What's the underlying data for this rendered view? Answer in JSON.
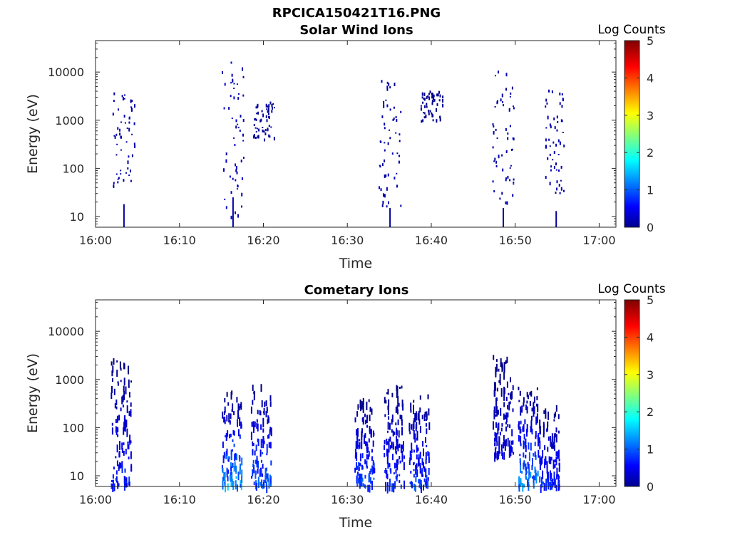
{
  "figure_title": "RPCICA150421T16.PNG",
  "chart_data": [
    {
      "type": "heatmap",
      "title": "Solar Wind Ions",
      "xlabel": "Time",
      "ylabel": "Energy (eV)",
      "x_ticks": [
        "16:00",
        "16:10",
        "16:20",
        "16:30",
        "16:40",
        "16:50",
        "17:00"
      ],
      "x_range_minutes": [
        0,
        62
      ],
      "y_ticks": [
        "10",
        "100",
        "1000",
        "10000"
      ],
      "y_scale": "log",
      "y_range": [
        6,
        45000
      ],
      "colorbar": {
        "label": "Log Counts",
        "ticks": [
          "0",
          "1",
          "2",
          "3",
          "4",
          "5"
        ],
        "range": [
          0,
          5
        ],
        "colormap": "jet"
      },
      "bursts": [
        {
          "t": 3.3,
          "e_min": 40,
          "e_max": 4000,
          "peak": 0.3,
          "floor_low": 6,
          "floor_high": 18
        },
        {
          "t": 16.3,
          "e_min": 10,
          "e_max": 17000,
          "peak": 0.4,
          "floor_low": 6,
          "floor_high": 25
        },
        {
          "t": 20.0,
          "e_min": 400,
          "e_max": 2500,
          "peak": 0.2
        },
        {
          "t": 35.0,
          "e_min": 15,
          "e_max": 8000,
          "peak": 0.3,
          "floor_low": 7,
          "floor_high": 15
        },
        {
          "t": 40.0,
          "e_min": 1000,
          "e_max": 4500,
          "peak": 0.1
        },
        {
          "t": 48.5,
          "e_min": 20,
          "e_max": 12000,
          "peak": 0.3,
          "floor_low": 8,
          "floor_high": 15
        },
        {
          "t": 54.8,
          "e_min": 30,
          "e_max": 4500,
          "peak": 0.3,
          "floor_low": 6,
          "floor_high": 13
        }
      ]
    },
    {
      "type": "heatmap",
      "title": "Cometary Ions",
      "xlabel": "Time",
      "ylabel": "Energy (eV)",
      "x_ticks": [
        "16:00",
        "16:10",
        "16:20",
        "16:30",
        "16:40",
        "16:50",
        "17:00"
      ],
      "x_range_minutes": [
        0,
        62
      ],
      "y_ticks": [
        "10",
        "100",
        "1000",
        "10000"
      ],
      "y_scale": "log",
      "y_range": [
        6,
        45000
      ],
      "colorbar": {
        "label": "Log Counts",
        "ticks": [
          "0",
          "1",
          "2",
          "3",
          "4",
          "5"
        ],
        "range": [
          0,
          5
        ],
        "colormap": "jet"
      },
      "bursts": [
        {
          "t": 3.0,
          "e_min": 6,
          "e_max": 3000,
          "peak": 1.0
        },
        {
          "t": 16.2,
          "e_min": 6,
          "e_max": 600,
          "peak": 1.8
        },
        {
          "t": 19.7,
          "e_min": 6,
          "e_max": 1000,
          "peak": 1.4
        },
        {
          "t": 32.0,
          "e_min": 6,
          "e_max": 450,
          "peak": 1.3
        },
        {
          "t": 35.5,
          "e_min": 6,
          "e_max": 800,
          "peak": 1.0
        },
        {
          "t": 38.5,
          "e_min": 6,
          "e_max": 500,
          "peak": 1.2
        },
        {
          "t": 48.5,
          "e_min": 30,
          "e_max": 3300,
          "peak": 0.6
        },
        {
          "t": 51.5,
          "e_min": 6,
          "e_max": 800,
          "peak": 1.6
        },
        {
          "t": 54.0,
          "e_min": 6,
          "e_max": 300,
          "peak": 1.1
        }
      ]
    }
  ]
}
